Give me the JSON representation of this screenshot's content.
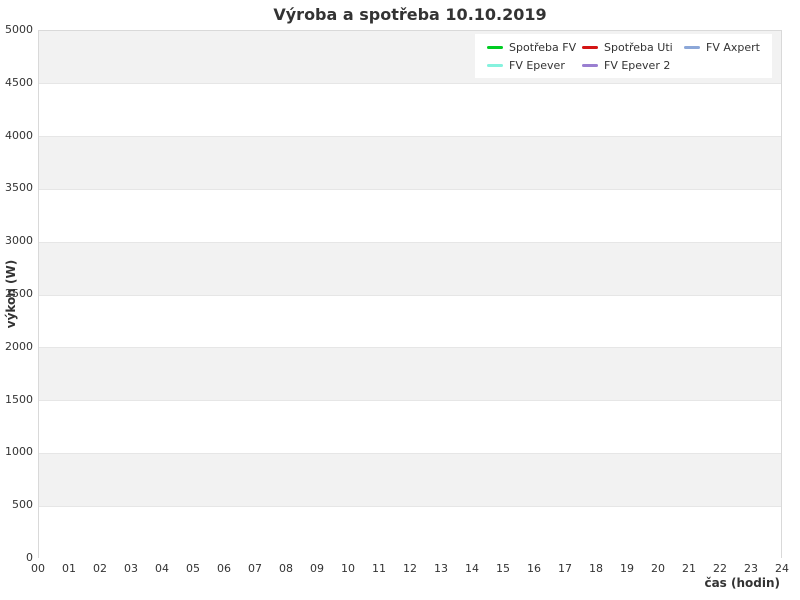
{
  "title": "Výroba a spotřeba 10.10.2019",
  "colors": {
    "page_bg": "#ffffff",
    "title_text": "#333333",
    "tick_text": "#333333",
    "band_gray": "#f2f2f2",
    "band_white": "#ffffff",
    "grid_line": "#e6e6e6",
    "plot_border": "#d9d9d9",
    "legend_bg": "#ffffff"
  },
  "y_axis": {
    "label": "výkon (W)"
  },
  "x_axis": {
    "label": "čas (hodin)"
  },
  "legend": {
    "items": [
      {
        "label": "Spotřeba FV",
        "color": "#00cc22"
      },
      {
        "label": "Spotřeba Uti",
        "color": "#d41414"
      },
      {
        "label": "FV Axpert",
        "color": "#8ca7d8"
      },
      {
        "label": "FV Epever",
        "color": "#85f2de"
      },
      {
        "label": "FV Epever 2",
        "color": "#9a7fd1"
      }
    ]
  },
  "chart_data": {
    "type": "line",
    "title": "Výroba a spotřeba 10.10.2019",
    "xlabel": "čas (hodin)",
    "ylabel": "výkon (W)",
    "xlim": [
      0,
      24
    ],
    "ylim": [
      0,
      5000
    ],
    "x_tick_labels": [
      "00",
      "01",
      "02",
      "03",
      "04",
      "05",
      "06",
      "07",
      "08",
      "09",
      "10",
      "11",
      "12",
      "13",
      "14",
      "15",
      "16",
      "17",
      "18",
      "19",
      "20",
      "21",
      "22",
      "23",
      "24"
    ],
    "y_ticks": [
      0,
      500,
      1000,
      1500,
      2000,
      2500,
      3000,
      3500,
      4000,
      4500,
      5000
    ],
    "grid": "horizontal gridlines every 500 W with alternating white/gray background bands (top band gray)",
    "legend_position": "top-right inside plot area, white box, 3 columns x 2 rows",
    "series": [
      {
        "name": "Spotřeba FV",
        "color": "#00cc22",
        "values": []
      },
      {
        "name": "Spotřeba Uti",
        "color": "#d41414",
        "values": []
      },
      {
        "name": "FV Axpert",
        "color": "#8ca7d8",
        "values": []
      },
      {
        "name": "FV Epever",
        "color": "#85f2de",
        "values": []
      },
      {
        "name": "FV Epever 2",
        "color": "#9a7fd1",
        "values": []
      }
    ],
    "note": "Plot area is empty — no data points/lines are drawn for any series in the visible chart."
  }
}
